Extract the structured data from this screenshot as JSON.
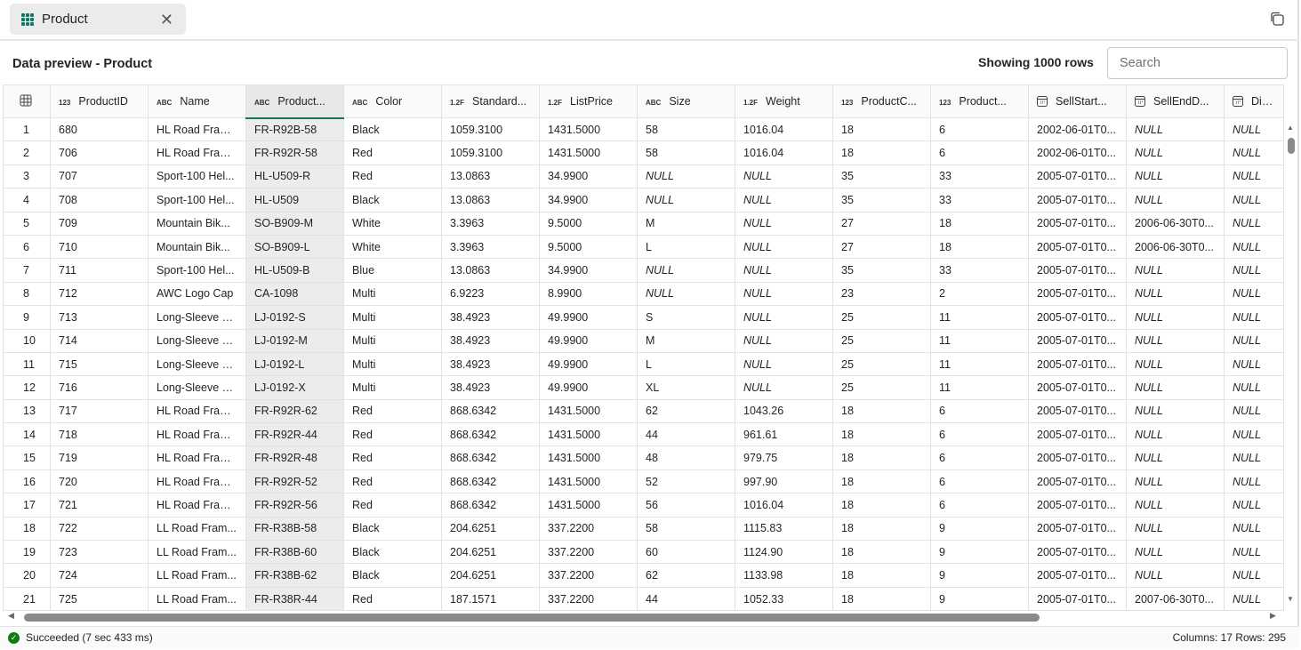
{
  "tab": {
    "label": "Product",
    "icon": "table-icon"
  },
  "header": {
    "title": "Data preview - Product",
    "showing": "Showing 1000 rows",
    "search_placeholder": "Search"
  },
  "columns": [
    {
      "type": "123",
      "label": "ProductID"
    },
    {
      "type": "ABC",
      "label": "Name"
    },
    {
      "type": "ABC",
      "label": "Product..."
    },
    {
      "type": "ABC",
      "label": "Color"
    },
    {
      "type": "1.2F",
      "label": "Standard..."
    },
    {
      "type": "1.2F",
      "label": "ListPrice"
    },
    {
      "type": "ABC",
      "label": "Size"
    },
    {
      "type": "1.2F",
      "label": "Weight"
    },
    {
      "type": "123",
      "label": "ProductC..."
    },
    {
      "type": "123",
      "label": "Product..."
    },
    {
      "type": "date",
      "label": "SellStart..."
    },
    {
      "type": "date",
      "label": "SellEndD..."
    },
    {
      "type": "date",
      "label": "Disco"
    }
  ],
  "rows": [
    [
      "1",
      "680",
      "HL Road Fram...",
      "FR-R92B-58",
      "Black",
      "1059.3100",
      "1431.5000",
      "58",
      "1016.04",
      "18",
      "6",
      "2002-06-01T0...",
      "NULL",
      "NULL"
    ],
    [
      "2",
      "706",
      "HL Road Fram...",
      "FR-R92R-58",
      "Red",
      "1059.3100",
      "1431.5000",
      "58",
      "1016.04",
      "18",
      "6",
      "2002-06-01T0...",
      "NULL",
      "NULL"
    ],
    [
      "3",
      "707",
      "Sport-100 Hel...",
      "HL-U509-R",
      "Red",
      "13.0863",
      "34.9900",
      "NULL",
      "NULL",
      "35",
      "33",
      "2005-07-01T0...",
      "NULL",
      "NULL"
    ],
    [
      "4",
      "708",
      "Sport-100 Hel...",
      "HL-U509",
      "Black",
      "13.0863",
      "34.9900",
      "NULL",
      "NULL",
      "35",
      "33",
      "2005-07-01T0...",
      "NULL",
      "NULL"
    ],
    [
      "5",
      "709",
      "Mountain Bik...",
      "SO-B909-M",
      "White",
      "3.3963",
      "9.5000",
      "M",
      "NULL",
      "27",
      "18",
      "2005-07-01T0...",
      "2006-06-30T0...",
      "NULL"
    ],
    [
      "6",
      "710",
      "Mountain Bik...",
      "SO-B909-L",
      "White",
      "3.3963",
      "9.5000",
      "L",
      "NULL",
      "27",
      "18",
      "2005-07-01T0...",
      "2006-06-30T0...",
      "NULL"
    ],
    [
      "7",
      "711",
      "Sport-100 Hel...",
      "HL-U509-B",
      "Blue",
      "13.0863",
      "34.9900",
      "NULL",
      "NULL",
      "35",
      "33",
      "2005-07-01T0...",
      "NULL",
      "NULL"
    ],
    [
      "8",
      "712",
      "AWC Logo Cap",
      "CA-1098",
      "Multi",
      "6.9223",
      "8.9900",
      "NULL",
      "NULL",
      "23",
      "2",
      "2005-07-01T0...",
      "NULL",
      "NULL"
    ],
    [
      "9",
      "713",
      "Long-Sleeve L...",
      "LJ-0192-S",
      "Multi",
      "38.4923",
      "49.9900",
      "S",
      "NULL",
      "25",
      "11",
      "2005-07-01T0...",
      "NULL",
      "NULL"
    ],
    [
      "10",
      "714",
      "Long-Sleeve L...",
      "LJ-0192-M",
      "Multi",
      "38.4923",
      "49.9900",
      "M",
      "NULL",
      "25",
      "11",
      "2005-07-01T0...",
      "NULL",
      "NULL"
    ],
    [
      "11",
      "715",
      "Long-Sleeve L...",
      "LJ-0192-L",
      "Multi",
      "38.4923",
      "49.9900",
      "L",
      "NULL",
      "25",
      "11",
      "2005-07-01T0...",
      "NULL",
      "NULL"
    ],
    [
      "12",
      "716",
      "Long-Sleeve L...",
      "LJ-0192-X",
      "Multi",
      "38.4923",
      "49.9900",
      "XL",
      "NULL",
      "25",
      "11",
      "2005-07-01T0...",
      "NULL",
      "NULL"
    ],
    [
      "13",
      "717",
      "HL Road Fram...",
      "FR-R92R-62",
      "Red",
      "868.6342",
      "1431.5000",
      "62",
      "1043.26",
      "18",
      "6",
      "2005-07-01T0...",
      "NULL",
      "NULL"
    ],
    [
      "14",
      "718",
      "HL Road Fram...",
      "FR-R92R-44",
      "Red",
      "868.6342",
      "1431.5000",
      "44",
      "961.61",
      "18",
      "6",
      "2005-07-01T0...",
      "NULL",
      "NULL"
    ],
    [
      "15",
      "719",
      "HL Road Fram...",
      "FR-R92R-48",
      "Red",
      "868.6342",
      "1431.5000",
      "48",
      "979.75",
      "18",
      "6",
      "2005-07-01T0...",
      "NULL",
      "NULL"
    ],
    [
      "16",
      "720",
      "HL Road Fram...",
      "FR-R92R-52",
      "Red",
      "868.6342",
      "1431.5000",
      "52",
      "997.90",
      "18",
      "6",
      "2005-07-01T0...",
      "NULL",
      "NULL"
    ],
    [
      "17",
      "721",
      "HL Road Fram...",
      "FR-R92R-56",
      "Red",
      "868.6342",
      "1431.5000",
      "56",
      "1016.04",
      "18",
      "6",
      "2005-07-01T0...",
      "NULL",
      "NULL"
    ],
    [
      "18",
      "722",
      "LL Road Fram...",
      "FR-R38B-58",
      "Black",
      "204.6251",
      "337.2200",
      "58",
      "1115.83",
      "18",
      "9",
      "2005-07-01T0...",
      "NULL",
      "NULL"
    ],
    [
      "19",
      "723",
      "LL Road Fram...",
      "FR-R38B-60",
      "Black",
      "204.6251",
      "337.2200",
      "60",
      "1124.90",
      "18",
      "9",
      "2005-07-01T0...",
      "NULL",
      "NULL"
    ],
    [
      "20",
      "724",
      "LL Road Fram...",
      "FR-R38B-62",
      "Black",
      "204.6251",
      "337.2200",
      "62",
      "1133.98",
      "18",
      "9",
      "2005-07-01T0...",
      "NULL",
      "NULL"
    ],
    [
      "21",
      "725",
      "LL Road Fram...",
      "FR-R38R-44",
      "Red",
      "187.1571",
      "337.2200",
      "44",
      "1052.33",
      "18",
      "9",
      "2005-07-01T0...",
      "2007-06-30T0...",
      "NULL"
    ]
  ],
  "status": {
    "message": "Succeeded (7 sec 433 ms)",
    "counts": "Columns: 17 Rows: 295"
  },
  "colors": {
    "accent": "#117865",
    "success": "#107c10"
  }
}
